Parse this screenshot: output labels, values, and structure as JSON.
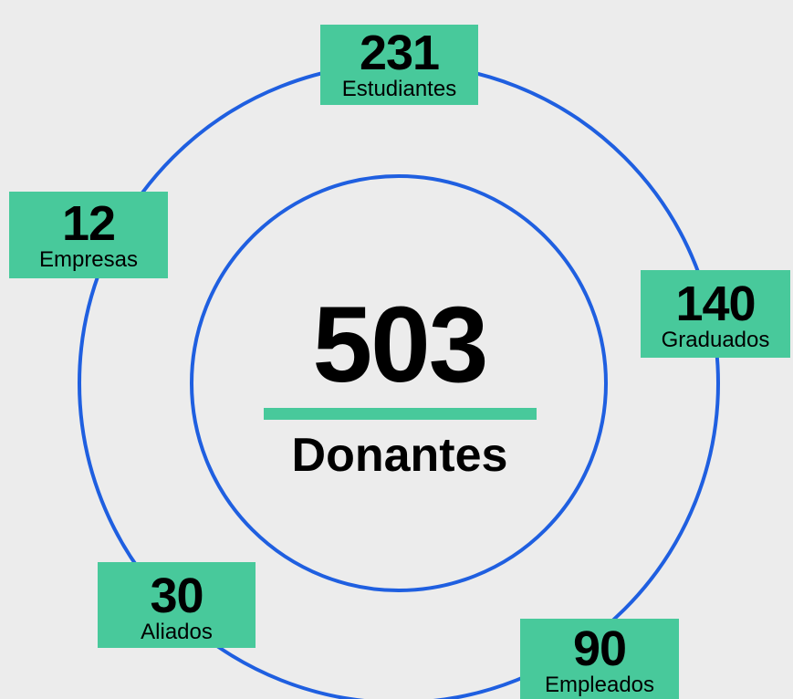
{
  "center": {
    "value": 503,
    "label": "Donantes"
  },
  "groups": [
    {
      "value": 231,
      "label": "Estudiantes"
    },
    {
      "value": 12,
      "label": "Empresas"
    },
    {
      "value": 140,
      "label": "Graduados"
    },
    {
      "value": 30,
      "label": "Aliados"
    },
    {
      "value": 90,
      "label": "Empleados"
    }
  ]
}
